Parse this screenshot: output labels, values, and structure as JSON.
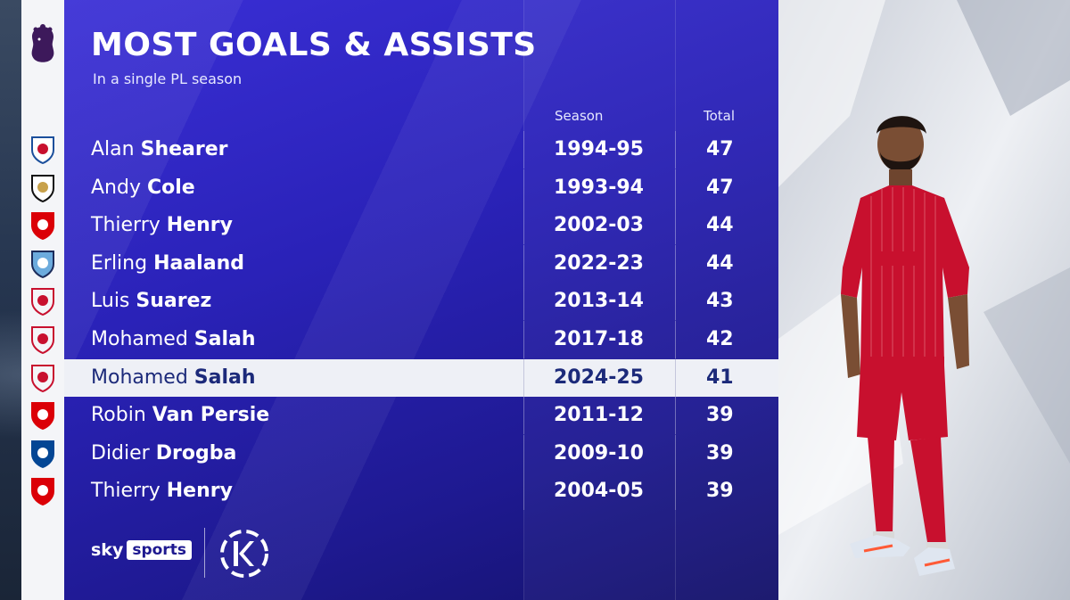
{
  "header": {
    "title": "MOST GOALS & ASSISTS",
    "subtitle": "In a single PL season"
  },
  "columns": {
    "season": "Season",
    "total": "Total"
  },
  "rows": [
    {
      "first": "Alan",
      "last": "Shearer",
      "season": "1994-95",
      "total": "47",
      "club": "blackburn-badge",
      "highlight": false
    },
    {
      "first": "Andy",
      "last": "Cole",
      "season": "1993-94",
      "total": "47",
      "club": "newcastle-badge",
      "highlight": false
    },
    {
      "first": "Thierry",
      "last": "Henry",
      "season": "2002-03",
      "total": "44",
      "club": "arsenal-badge",
      "highlight": false
    },
    {
      "first": "Erling",
      "last": "Haaland",
      "season": "2022-23",
      "total": "44",
      "club": "man-city-badge",
      "highlight": false
    },
    {
      "first": "Luis",
      "last": "Suarez",
      "season": "2013-14",
      "total": "43",
      "club": "liverpool-badge",
      "highlight": false
    },
    {
      "first": "Mohamed",
      "last": "Salah",
      "season": "2017-18",
      "total": "42",
      "club": "liverpool-badge",
      "highlight": false
    },
    {
      "first": "Mohamed",
      "last": "Salah",
      "season": "2024-25",
      "total": "41",
      "club": "liverpool-badge",
      "highlight": true
    },
    {
      "first": "Robin",
      "last": "Van Persie",
      "season": "2011-12",
      "total": "39",
      "club": "arsenal-badge",
      "highlight": false
    },
    {
      "first": "Didier",
      "last": "Drogba",
      "season": "2009-10",
      "total": "39",
      "club": "chelsea-badge",
      "highlight": false
    },
    {
      "first": "Thierry",
      "last": "Henry",
      "season": "2004-05",
      "total": "39",
      "club": "arsenal-badge",
      "highlight": false
    }
  ],
  "footer": {
    "sky_word": "sky",
    "sports_word": "sports",
    "kick_it_out_logo": "KICK IT OUT"
  },
  "colors": {
    "panel_blue": "#2a22b8",
    "highlight_row": "#eef0f6",
    "highlight_text": "#1c2a7a",
    "liverpool_red": "#c8102e",
    "arsenal_red": "#db0007",
    "chelsea_blue": "#034694",
    "city_blue": "#6cabdd"
  },
  "icons": [
    "premier-league-lion-icon",
    "club-badge-icons",
    "sky-sports-logo",
    "kick-it-out-logo",
    "player-photo"
  ]
}
